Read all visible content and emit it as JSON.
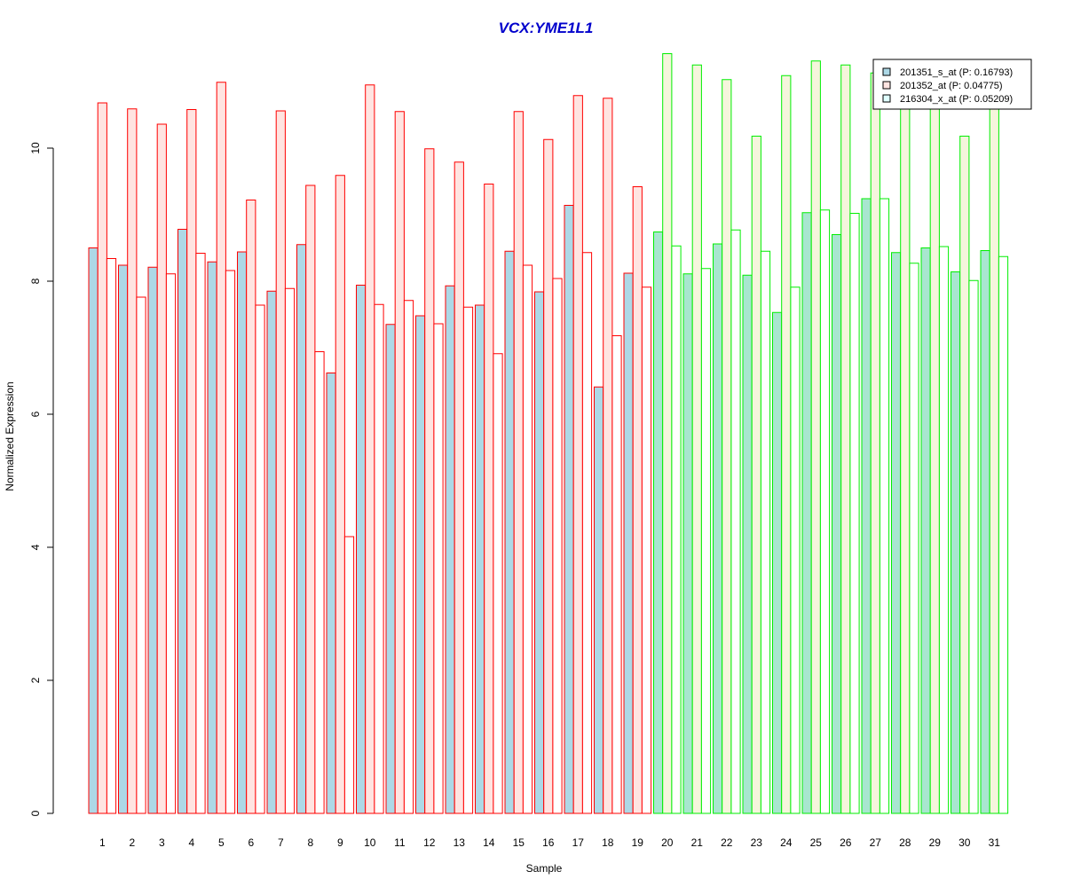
{
  "chart_data": {
    "type": "bar",
    "title": "VCX:YME1L1",
    "title_color": "#0000cc",
    "xlabel": "Sample",
    "ylabel": "Normalized Expression",
    "ylim": [
      0,
      11.5
    ],
    "yticks": [
      0,
      2,
      4,
      6,
      8,
      10
    ],
    "categories": [
      "1",
      "2",
      "3",
      "4",
      "5",
      "6",
      "7",
      "8",
      "9",
      "10",
      "11",
      "12",
      "13",
      "14",
      "15",
      "16",
      "17",
      "18",
      "19",
      "20",
      "21",
      "22",
      "23",
      "24",
      "25",
      "26",
      "27",
      "28",
      "29",
      "30",
      "31"
    ],
    "group_border_colors": [
      "#ff0000",
      "#ff0000",
      "#ff0000",
      "#ff0000",
      "#ff0000",
      "#ff0000",
      "#ff0000",
      "#ff0000",
      "#ff0000",
      "#ff0000",
      "#ff0000",
      "#ff0000",
      "#ff0000",
      "#ff0000",
      "#ff0000",
      "#ff0000",
      "#ff0000",
      "#ff0000",
      "#ff0000",
      "#00ee00",
      "#00ee00",
      "#00ee00",
      "#00ee00",
      "#00ee00",
      "#00ee00",
      "#00ee00",
      "#00ee00",
      "#00ee00",
      "#00ee00",
      "#00ee00",
      "#00ee00"
    ],
    "series": [
      {
        "name": "201351_s_at (P: 0.16793)",
        "fill": "#add8e6",
        "fill_group2": "#a8e6cf",
        "values": [
          8.5,
          8.24,
          8.21,
          8.78,
          8.29,
          8.44,
          7.85,
          8.55,
          6.62,
          7.94,
          7.35,
          7.48,
          7.93,
          7.64,
          8.45,
          7.84,
          9.14,
          6.41,
          8.12,
          8.74,
          8.11,
          8.56,
          8.09,
          7.53,
          9.03,
          8.7,
          9.24,
          8.43,
          8.5,
          8.14,
          8.46
        ]
      },
      {
        "name": "201352_at (P: 0.04775)",
        "fill": "#ffe4e1",
        "fill_group2": "#f5f5dc",
        "values": [
          10.68,
          10.59,
          10.36,
          10.58,
          10.99,
          9.22,
          10.56,
          9.44,
          9.59,
          10.95,
          10.55,
          9.99,
          9.79,
          9.46,
          10.55,
          10.13,
          10.79,
          10.75,
          9.42,
          11.42,
          11.25,
          11.03,
          10.18,
          11.09,
          11.31,
          11.25,
          11.13,
          10.77,
          10.89,
          10.18,
          10.74
        ]
      },
      {
        "name": "216304_x_at (P: 0.05209)",
        "fill": "#ffffff",
        "fill_group2": "#ffffff",
        "values": [
          8.34,
          7.76,
          8.11,
          8.42,
          8.16,
          7.64,
          7.89,
          6.94,
          4.16,
          7.65,
          7.71,
          7.36,
          7.61,
          6.91,
          8.24,
          8.04,
          8.43,
          7.18,
          7.91,
          8.53,
          8.19,
          8.77,
          8.45,
          7.91,
          9.07,
          9.02,
          9.24,
          8.27,
          8.52,
          8.01,
          8.37
        ]
      }
    ],
    "legend_position": "top-right",
    "legend_fills": [
      "#add8e6",
      "#ffe4e1",
      "#e0ffff"
    ],
    "grid": false
  }
}
